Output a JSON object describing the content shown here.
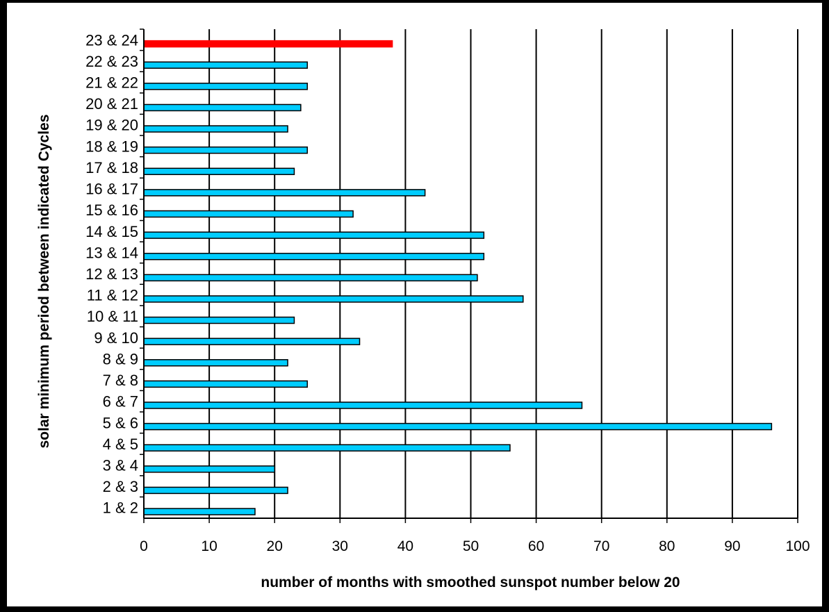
{
  "chart_data": {
    "type": "bar",
    "orientation": "horizontal",
    "title": "",
    "xlabel": "number of months with smoothed sunspot number below 20",
    "ylabel": "solar minimum period between indicated Cycles",
    "xlim": [
      0,
      100
    ],
    "xticks": [
      0,
      10,
      20,
      30,
      40,
      50,
      60,
      70,
      80,
      90,
      100
    ],
    "grid": "vertical",
    "legend": "none",
    "categories": [
      "1 & 2",
      "2 & 3",
      "3 & 4",
      "4 & 5",
      "5 & 6",
      "6 & 7",
      "7 & 8",
      "8 & 9",
      "9 & 10",
      "10 & 11",
      "11 & 12",
      "12 & 13",
      "13 & 14",
      "14 & 15",
      "15 & 16",
      "16 & 17",
      "17 & 18",
      "18 & 19",
      "19 & 20",
      "20 & 21",
      "21 & 22",
      "22 & 23",
      "23 & 24"
    ],
    "values": [
      17,
      22,
      20,
      56,
      96,
      67,
      25,
      22,
      33,
      23,
      58,
      51,
      52,
      52,
      32,
      43,
      23,
      25,
      22,
      24,
      25,
      25,
      38
    ],
    "colors": {
      "default": "#00ccff",
      "highlight": "#ff0000",
      "highlight_category": "23 & 24",
      "bar_edge": "#000000",
      "grid_line": "#000000"
    }
  }
}
